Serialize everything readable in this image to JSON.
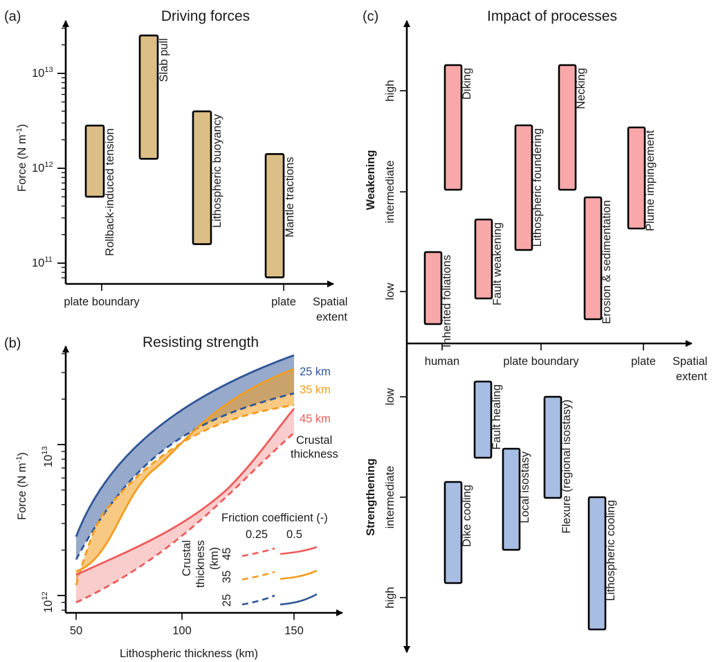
{
  "panel_a": {
    "tag": "(a)",
    "title": "Driving forces",
    "ylabel": "Force (N m",
    "ylabel_sup": "-1",
    "ylabel_end": ")",
    "yticks": [
      {
        "base": "10",
        "exp": "13"
      },
      {
        "base": "10",
        "exp": "12"
      },
      {
        "base": "10",
        "exp": "11"
      }
    ],
    "x_labels": [
      "plate boundary",
      "plate"
    ],
    "x_axis_label_1": "Spatial",
    "x_axis_label_2": "extent",
    "bars": [
      {
        "label": "Rollback-induced tension",
        "low_log10": 11.7,
        "high_log10": 12.45
      },
      {
        "label": "Slab pull",
        "low_log10": 12.1,
        "high_log10": 13.4
      },
      {
        "label": "Lithospheric buoyancy",
        "low_log10": 11.2,
        "high_log10": 12.6
      },
      {
        "label": "Mantle tractions",
        "low_log10": 10.85,
        "high_log10": 12.15
      }
    ],
    "bar_color": "#dcbf87"
  },
  "panel_b": {
    "tag": "(b)",
    "title": "Resisting strength",
    "ylabel": "Force (N m",
    "ylabel_sup": "-1",
    "ylabel_end": ")",
    "xlabel": "Lithospheric thickness (km)",
    "xticks": [
      "50",
      "100",
      "150"
    ],
    "yticks": [
      {
        "base": "10",
        "exp": "13"
      },
      {
        "base": "10",
        "exp": "12"
      }
    ],
    "curve_labels": [
      "25 km",
      "35 km",
      "45 km"
    ],
    "crustal_label_1": "Crustal",
    "crustal_label_2": "thickness",
    "legend_title": "Friction coefficient (-)",
    "legend_cols": [
      "0.25",
      "0.5"
    ],
    "legend_rows": [
      "45",
      "35",
      "25"
    ],
    "legend_side_1": "Crustal",
    "legend_side_2": "thickness",
    "legend_side_3": "(km)",
    "colors": {
      "25": "#2f5597",
      "35": "#f39c1e",
      "45": "#ee5a5a"
    }
  },
  "panel_c": {
    "tag": "(c)",
    "title": "Impact of processes",
    "weakening_label": "Weakening",
    "strengthening_label": "Strengthening",
    "weak_levels": [
      "high",
      "intermediate",
      "low"
    ],
    "strong_levels": [
      "low",
      "intermediate",
      "high"
    ],
    "x_labels": [
      "human",
      "plate boundary",
      "plate"
    ],
    "x_axis_label_1": "Spatial",
    "x_axis_label_2": "extent",
    "weakening_bars": [
      {
        "label": "Inherited foliations"
      },
      {
        "label": "Diking"
      },
      {
        "label": "Fault weakening"
      },
      {
        "label": "Lithospheric foundering"
      },
      {
        "label": "Necking"
      },
      {
        "label": "Erosion & sedimentation"
      },
      {
        "label": "Plume impingement"
      }
    ],
    "strengthening_bars": [
      {
        "label": "Fault healing"
      },
      {
        "label": "Dike cooling"
      },
      {
        "label": "Local isostasy"
      },
      {
        "label": "Flexure (regional isostasy)"
      },
      {
        "label": "Lithospheric cooling"
      }
    ],
    "weak_color": "#f9a8aa",
    "strong_color": "#a7bde3"
  }
}
